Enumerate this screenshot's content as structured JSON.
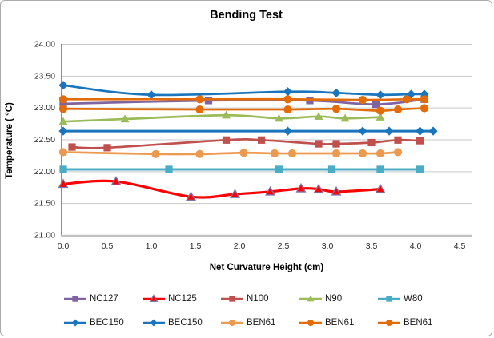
{
  "chart_data": {
    "type": "line",
    "title": "Bending Test",
    "xlabel": "Net Curvature Height (cm)",
    "ylabel": "Temperature ( °C)",
    "xlim": [
      0,
      4.5
    ],
    "ylim": [
      21.0,
      24.0
    ],
    "xticks": [
      "0.0",
      "0.5",
      "1.0",
      "1.5",
      "2.0",
      "2.5",
      "3.0",
      "3.5",
      "4.0",
      "4.5"
    ],
    "yticks": [
      "24.00",
      "23.50",
      "23.00",
      "22.50",
      "22.00",
      "21.50",
      "21.00"
    ],
    "grid": "horizontal",
    "legend_position": "bottom",
    "line_style": "smooth",
    "series": [
      {
        "name": "NC127",
        "color": "#8064A2",
        "marker": "square",
        "points": [
          [
            0.0,
            23.06
          ],
          [
            1.65,
            23.11
          ],
          [
            2.8,
            23.11
          ],
          [
            3.55,
            23.05
          ],
          [
            4.1,
            23.13
          ]
        ]
      },
      {
        "name": "NC125",
        "color": "#FE0000",
        "marker": "triangle",
        "marker_stroke": "#7A7AAF",
        "width": 3.2,
        "points": [
          [
            0.0,
            21.8
          ],
          [
            0.6,
            21.84
          ],
          [
            1.45,
            21.6
          ],
          [
            1.95,
            21.64
          ],
          [
            2.35,
            21.68
          ],
          [
            2.7,
            21.73
          ],
          [
            2.9,
            21.72
          ],
          [
            3.1,
            21.68
          ],
          [
            3.6,
            21.72
          ]
        ]
      },
      {
        "name": "N100",
        "color": "#C0504D",
        "marker": "square",
        "points": [
          [
            0.1,
            22.38
          ],
          [
            0.5,
            22.37
          ],
          [
            1.85,
            22.49
          ],
          [
            2.25,
            22.49
          ],
          [
            2.9,
            22.43
          ],
          [
            3.1,
            22.43
          ],
          [
            3.5,
            22.45
          ],
          [
            3.8,
            22.49
          ],
          [
            4.05,
            22.48
          ]
        ]
      },
      {
        "name": "N90",
        "color": "#9BBB59",
        "marker": "triangle",
        "points": [
          [
            0.0,
            22.78
          ],
          [
            0.7,
            22.82
          ],
          [
            1.85,
            22.88
          ],
          [
            2.45,
            22.83
          ],
          [
            2.9,
            22.86
          ],
          [
            3.2,
            22.83
          ],
          [
            3.6,
            22.85
          ]
        ]
      },
      {
        "name": "W80",
        "color": "#4BACC6",
        "marker": "square",
        "width": 3,
        "points": [
          [
            0.0,
            22.03
          ],
          [
            1.2,
            22.03
          ],
          [
            2.45,
            22.03
          ],
          [
            3.05,
            22.03
          ],
          [
            3.6,
            22.03
          ],
          [
            4.05,
            22.03
          ]
        ]
      },
      {
        "name": "BEC150",
        "color": "#1B75BC",
        "marker": "diamond",
        "points": [
          [
            0.0,
            23.35
          ],
          [
            1.0,
            23.2
          ],
          [
            2.55,
            23.25
          ],
          [
            3.1,
            23.23
          ],
          [
            3.6,
            23.2
          ],
          [
            3.95,
            23.21
          ],
          [
            4.1,
            23.21
          ]
        ]
      },
      {
        "name": "BEC150",
        "color": "#1B75BC",
        "marker": "diamond",
        "width": 3,
        "points": [
          [
            0.0,
            22.63
          ],
          [
            2.55,
            22.63
          ],
          [
            3.4,
            22.63
          ],
          [
            3.7,
            22.63
          ],
          [
            4.05,
            22.63
          ],
          [
            4.2,
            22.63
          ]
        ]
      },
      {
        "name": "BEN61",
        "color": "#EC9A50",
        "marker": "circle",
        "points": [
          [
            0.0,
            22.3
          ],
          [
            1.05,
            22.27
          ],
          [
            1.55,
            22.27
          ],
          [
            2.05,
            22.29
          ],
          [
            2.4,
            22.28
          ],
          [
            2.6,
            22.28
          ],
          [
            3.1,
            22.28
          ],
          [
            3.4,
            22.28
          ],
          [
            3.6,
            22.28
          ],
          [
            3.8,
            22.3
          ]
        ]
      },
      {
        "name": "BEN61",
        "color": "#E36C09",
        "marker": "circle",
        "points": [
          [
            0.0,
            22.98
          ],
          [
            1.55,
            22.97
          ],
          [
            2.55,
            22.97
          ],
          [
            3.1,
            22.98
          ],
          [
            3.6,
            22.95
          ],
          [
            3.8,
            22.97
          ],
          [
            4.1,
            22.99
          ]
        ]
      },
      {
        "name": "BEN61",
        "color": "#E36C09",
        "marker": "circle",
        "points": [
          [
            0.0,
            23.13
          ],
          [
            1.55,
            23.13
          ],
          [
            2.55,
            23.13
          ],
          [
            3.4,
            23.12
          ],
          [
            3.9,
            23.13
          ],
          [
            4.1,
            23.13
          ]
        ]
      }
    ]
  }
}
